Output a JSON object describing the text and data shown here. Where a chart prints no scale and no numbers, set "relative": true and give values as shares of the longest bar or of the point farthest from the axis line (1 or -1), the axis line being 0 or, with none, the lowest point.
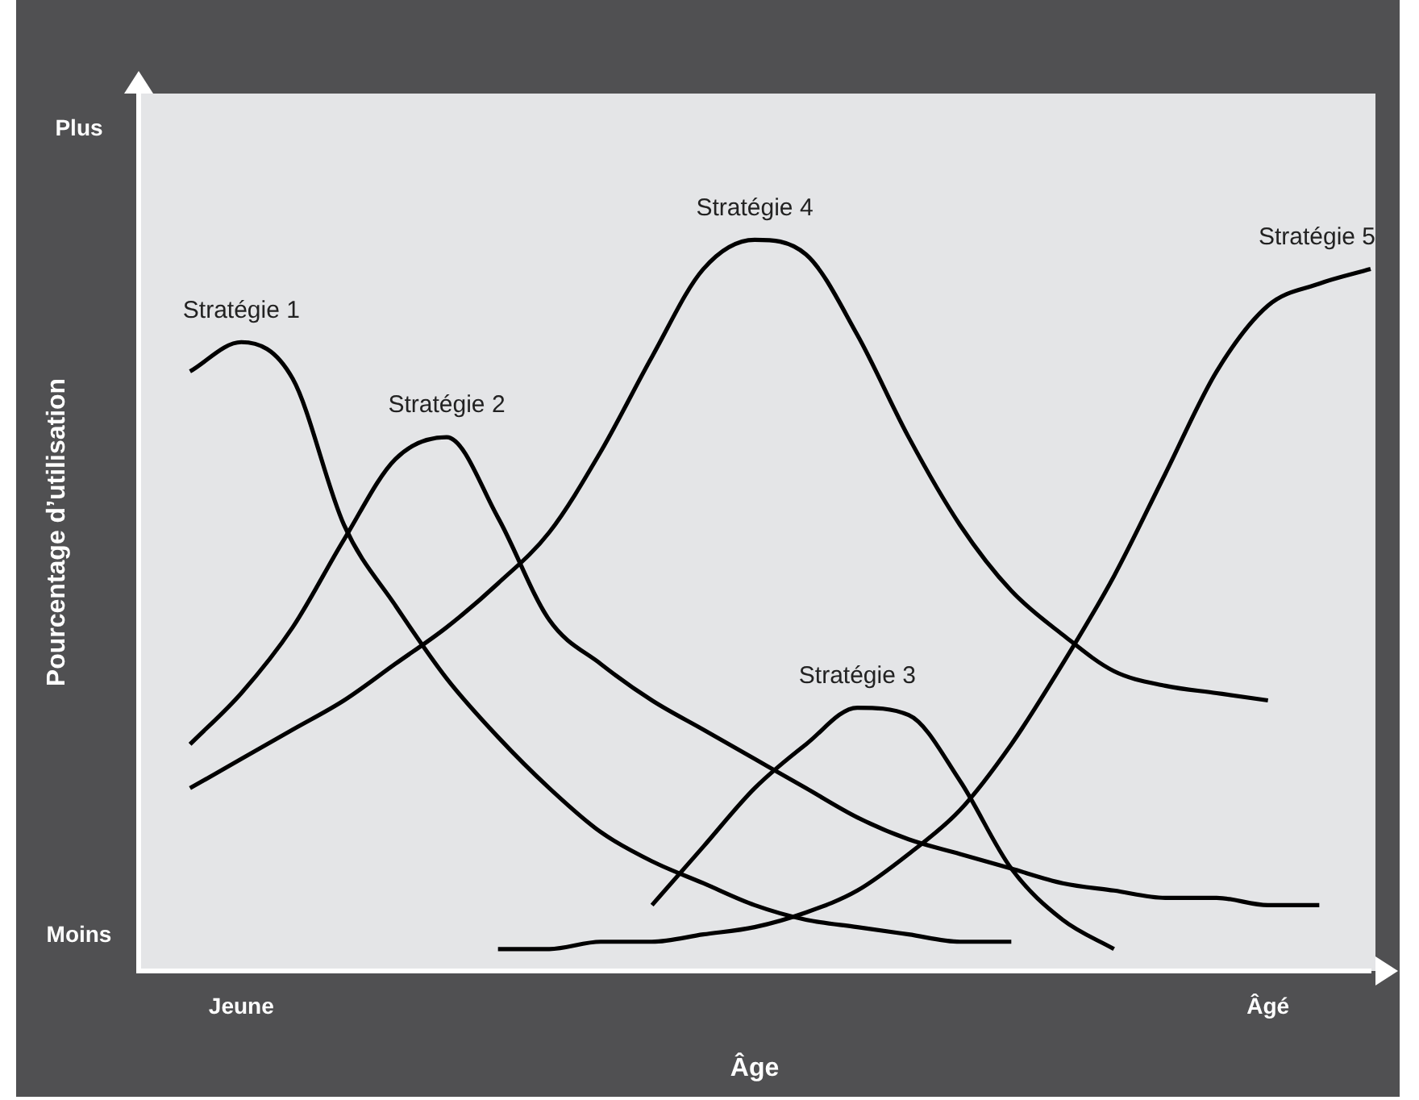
{
  "chart_data": {
    "type": "line",
    "relative": true,
    "xlabel": "Âge",
    "ylabel": "Pourcentage d’utilisation",
    "annotations": [
      "Plus",
      "Moins"
    ],
    "categories": [
      null,
      null,
      "Jeune",
      null,
      null,
      null,
      null,
      null,
      null,
      null,
      null,
      null,
      null,
      null,
      null,
      null,
      null,
      null,
      null,
      null,
      null,
      null,
      "Âgé",
      null,
      null
    ],
    "marker": "none",
    "grid": false,
    "legend": false,
    "series": [
      {
        "name": "Stratégie 1",
        "color": "#000000",
        "values": [
          null,
          0.82,
          0.86,
          0.81,
          0.61,
          0.5,
          0.4,
          0.32,
          0.25,
          0.19,
          0.15,
          0.12,
          0.09,
          0.07,
          0.06,
          0.05,
          0.04,
          0.04,
          null,
          null,
          null,
          null,
          null,
          null,
          null
        ]
      },
      {
        "name": "Stratégie 2",
        "color": "#000000",
        "values": [
          null,
          0.31,
          0.38,
          0.47,
          0.59,
          0.7,
          0.73,
          0.62,
          0.48,
          0.42,
          0.37,
          0.33,
          0.29,
          0.25,
          0.21,
          0.18,
          0.16,
          0.14,
          0.12,
          0.11,
          0.1,
          0.1,
          0.09,
          0.09,
          null
        ]
      },
      {
        "name": "Stratégie 3",
        "color": "#000000",
        "values": [
          null,
          null,
          null,
          null,
          null,
          null,
          null,
          null,
          null,
          null,
          0.09,
          0.17,
          0.25,
          0.31,
          0.36,
          0.35,
          0.26,
          0.14,
          0.07,
          0.03,
          null,
          null,
          null,
          null,
          null
        ]
      },
      {
        "name": "Stratégie 4",
        "color": "#000000",
        "values": [
          null,
          0.25,
          0.29,
          0.33,
          0.37,
          0.42,
          0.47,
          0.53,
          0.6,
          0.71,
          0.84,
          0.96,
          1.0,
          0.98,
          0.87,
          0.73,
          0.61,
          0.52,
          0.46,
          0.41,
          0.39,
          0.38,
          0.37,
          null,
          null
        ]
      },
      {
        "name": "Stratégie 5",
        "color": "#000000",
        "values": [
          null,
          null,
          null,
          null,
          null,
          null,
          null,
          0.03,
          0.03,
          0.04,
          0.04,
          0.05,
          0.06,
          0.08,
          0.11,
          0.16,
          0.22,
          0.31,
          0.42,
          0.54,
          0.68,
          0.82,
          0.91,
          0.94,
          0.96
        ]
      }
    ]
  }
}
